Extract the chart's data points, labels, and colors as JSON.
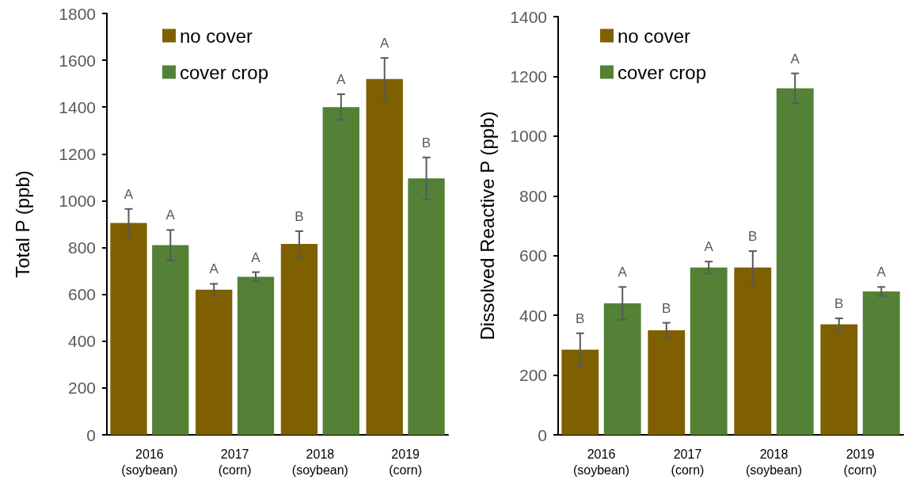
{
  "chart_data": [
    {
      "type": "bar",
      "ylabel": "Total P (ppb)",
      "categories": [
        "2016\n(soybean)",
        "2017\n(corn)",
        "2018\n(soybean)",
        "2019\n(corn)"
      ],
      "series": [
        {
          "name": "no cover",
          "color": "#7f6000",
          "values": [
            905,
            620,
            815,
            1520
          ],
          "errors": [
            60,
            25,
            55,
            90
          ],
          "value_labels": [
            "A",
            "A",
            "B",
            "A"
          ]
        },
        {
          "name": "cover crop",
          "color": "#538135",
          "values": [
            810,
            675,
            1400,
            1095
          ],
          "errors": [
            65,
            20,
            55,
            90
          ],
          "value_labels": [
            "A",
            "A",
            "A",
            "B"
          ]
        }
      ],
      "ylim": [
        0,
        1800
      ],
      "yticks": [
        0,
        200,
        400,
        600,
        800,
        1000,
        1200,
        1400,
        1600,
        1800
      ],
      "grid": false,
      "legend": "top left"
    },
    {
      "type": "bar",
      "ylabel": "Dissolved Reactive P (ppb)",
      "categories": [
        "2016\n(soybean)",
        "2017\n(corn)",
        "2018\n(soybean)",
        "2019\n(corn)"
      ],
      "series": [
        {
          "name": "no cover",
          "color": "#7f6000",
          "values": [
            285,
            350,
            560,
            370
          ],
          "errors": [
            55,
            25,
            55,
            20
          ],
          "value_labels": [
            "B",
            "B",
            "B",
            "B"
          ]
        },
        {
          "name": "cover crop",
          "color": "#538135",
          "values": [
            440,
            560,
            1160,
            480
          ],
          "errors": [
            55,
            20,
            50,
            15
          ],
          "value_labels": [
            "A",
            "A",
            "A",
            "A"
          ]
        }
      ],
      "ylim": [
        0,
        1400
      ],
      "yticks": [
        0,
        200,
        400,
        600,
        800,
        1000,
        1200,
        1400
      ],
      "grid": false,
      "legend": "top left"
    }
  ]
}
